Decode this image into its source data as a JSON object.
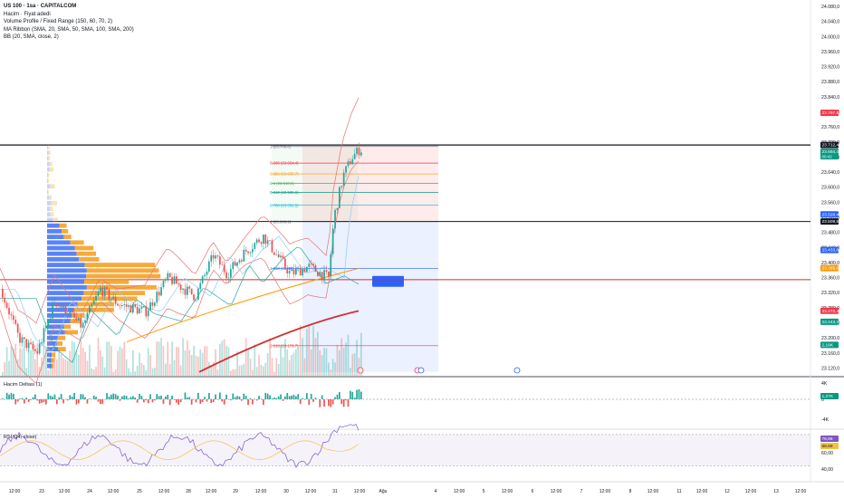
{
  "legend": {
    "symbol": "US 100 · 1sa · CAPITALCOM",
    "indicators": [
      "Hacim · Fiyat adedi",
      "Volume Profile / Fixed Range (150, 60, 70, 2)",
      "MA Ribbon (SMA, 20, SMA, 50, SMA, 100, SMA, 200)",
      "BB (20, SMA, close, 2)"
    ]
  },
  "panes": {
    "delta_label": "Hacim Deltası (1)",
    "rsi_label": "RSI (14, close)"
  },
  "colors": {
    "up": "#26a69a",
    "down": "#ef5350",
    "bb": "#e57373",
    "ma20": "#90caf9",
    "ma50": "#26a69a",
    "ma100": "#ff9800",
    "ma200": "#d32f2f",
    "vp_up": "#3d6ff5",
    "vp_down": "#f59b1a"
  },
  "chart_data": {
    "type": "candlestick",
    "price_axis": {
      "labels": [
        "24.080,0",
        "24.040,0",
        "24.000,0",
        "23.960,0",
        "23.920,0",
        "23.880,0",
        "23.840,0",
        "23.800,0",
        "23.760,0",
        "23.720,0",
        "23.680,0",
        "23.640,0",
        "23.600,0",
        "23.560,0",
        "23.520,0",
        "23.480,0",
        "23.440,0",
        "23.400,0",
        "23.360,0",
        "23.320,0",
        "23.280,0",
        "23.240,0",
        "23.200,0",
        "23.160,0",
        "23.120,0"
      ],
      "range": [
        23100,
        24090
      ]
    },
    "price_badges": [
      {
        "label": "23.797,8",
        "value": 23797.8,
        "color": "#f23645"
      },
      {
        "label": "23.712,4",
        "value": 23712.4,
        "color": "#131722"
      },
      {
        "label": "23.694,4",
        "value": 23694.4,
        "color": "#089981",
        "sub": "00:42"
      },
      {
        "label": "23.528,4",
        "value": 23528.4,
        "color": "#2962ff"
      },
      {
        "label": "23.509,5",
        "value": 23509.5,
        "color": "#131722"
      },
      {
        "label": "23.433,8",
        "value": 23433.8,
        "color": "#2962ff"
      },
      {
        "label": "23.385,6",
        "value": 23385.6,
        "color": "#ff9800"
      },
      {
        "label": "23.272,4",
        "value": 23272.4,
        "color": "#f23645"
      },
      {
        "label": "23.243,4",
        "value": 23243.4,
        "color": "#089981"
      },
      {
        "label": "2,19K",
        "value": 23182,
        "color": "#089981"
      }
    ],
    "time_axis": {
      "labels": [
        "12:00",
        "23",
        "12:00",
        "24",
        "12:00",
        "25",
        "12:00",
        "28",
        "12:00",
        "29",
        "12:00",
        "30",
        "12:00",
        "31",
        "12:00",
        "Ağu",
        "4",
        "12:00",
        "5",
        "12:00",
        "6",
        "12:00",
        "7",
        "12:00",
        "8",
        "12:00",
        "11",
        "12:00",
        "12",
        "12:00",
        "13",
        "12:00"
      ]
    },
    "fibonacci": [
      {
        "label": "1 (23.708,6)",
        "value": 23708.6,
        "color": "#787b86"
      },
      {
        "label": "0.236 (23.664,4)",
        "value": 23664.4,
        "color": "#f23645"
      },
      {
        "label": "0.382 (23.635,7)",
        "value": 23635.7,
        "color": "#ff9800"
      },
      {
        "label": "0.5 (23.610,6)",
        "value": 23610.6,
        "color": "#4caf50"
      },
      {
        "label": "0.618 (23.586,6)",
        "value": 23586.6,
        "color": "#089981"
      },
      {
        "label": "0.786 (23.552,5)",
        "value": 23552.5,
        "color": "#00bcd4"
      },
      {
        "label": "1 (23.508,9)",
        "value": 23508.9,
        "color": "#787b86"
      },
      {
        "label": "1.618 (23.385,2)",
        "value": 23385.2,
        "color": "#2962ff"
      },
      {
        "label": "2.618 (23.179,7)",
        "value": 23179.7,
        "color": "#f23645"
      }
    ],
    "horizontal_lines": [
      {
        "value": 23712.4,
        "color": "#131722"
      },
      {
        "value": 23509.5,
        "color": "#131722"
      },
      {
        "value": 23355,
        "color": "#d32f2f"
      }
    ],
    "delta_axis": [
      "4K",
      "0",
      "-4K"
    ],
    "delta_badge": "1,27K",
    "rsi_axis": [
      "60,00",
      "40,00"
    ],
    "rsi_badges": [
      "76,96",
      "68,58"
    ]
  }
}
